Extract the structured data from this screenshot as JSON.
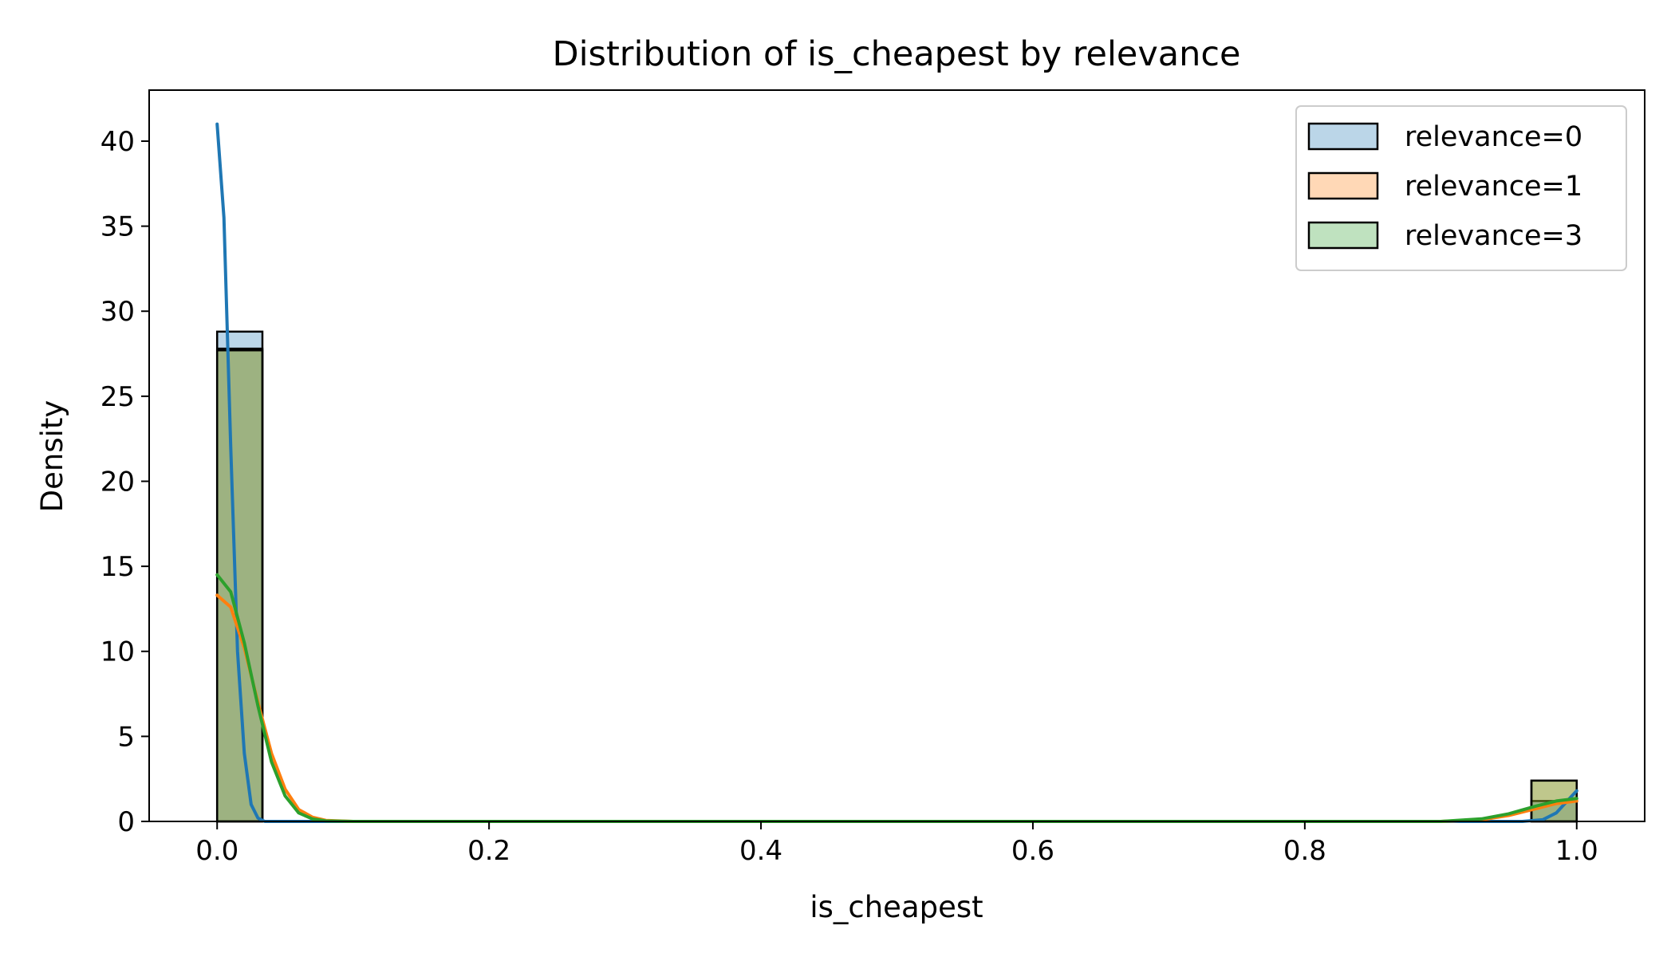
{
  "chart_data": {
    "type": "bar",
    "title": "Distribution of is_cheapest by relevance",
    "xlabel": "is_cheapest",
    "ylabel": "Density",
    "xlim": [
      -0.05,
      1.05
    ],
    "ylim": [
      0,
      43
    ],
    "x_ticks": [
      "0.0",
      "0.2",
      "0.4",
      "0.6",
      "0.8",
      "1.0"
    ],
    "y_ticks": [
      "0",
      "5",
      "10",
      "15",
      "20",
      "25",
      "30",
      "35",
      "40"
    ],
    "legend_position": "top-right",
    "grid": false,
    "bin_width": 0.0333,
    "series": [
      {
        "name": "relevance=0",
        "color": "#1f77b4",
        "bins": [
          {
            "x0": 0.0,
            "x1": 0.0333,
            "density": 28.8
          },
          {
            "x0": 0.9667,
            "x1": 1.0,
            "density": 1.2
          }
        ],
        "kde": [
          [
            0.0,
            41.0
          ],
          [
            0.005,
            35.5
          ],
          [
            0.01,
            22.0
          ],
          [
            0.015,
            10.0
          ],
          [
            0.02,
            4.0
          ],
          [
            0.025,
            1.0
          ],
          [
            0.03,
            0.2
          ],
          [
            0.035,
            0.0
          ],
          [
            0.96,
            0.0
          ],
          [
            0.975,
            0.1
          ],
          [
            0.985,
            0.5
          ],
          [
            0.993,
            1.2
          ],
          [
            1.0,
            1.8
          ]
        ]
      },
      {
        "name": "relevance=1",
        "color": "#ff7f0e",
        "bins": [
          {
            "x0": 0.0,
            "x1": 0.0333,
            "density": 27.8
          },
          {
            "x0": 0.9667,
            "x1": 1.0,
            "density": 2.4
          }
        ],
        "kde": [
          [
            0.0,
            13.3
          ],
          [
            0.01,
            12.6
          ],
          [
            0.02,
            10.2
          ],
          [
            0.03,
            7.0
          ],
          [
            0.04,
            4.0
          ],
          [
            0.05,
            1.9
          ],
          [
            0.06,
            0.7
          ],
          [
            0.07,
            0.25
          ],
          [
            0.08,
            0.06
          ],
          [
            0.1,
            0.0
          ],
          [
            0.9,
            0.0
          ],
          [
            0.93,
            0.1
          ],
          [
            0.95,
            0.35
          ],
          [
            0.97,
            0.75
          ],
          [
            0.985,
            1.05
          ],
          [
            1.0,
            1.2
          ]
        ]
      },
      {
        "name": "relevance=3",
        "color": "#2ca02c",
        "bins": [
          {
            "x0": 0.0,
            "x1": 0.0333,
            "density": 27.7
          },
          {
            "x0": 0.9667,
            "x1": 1.0,
            "density": 2.4
          }
        ],
        "kde": [
          [
            0.0,
            14.5
          ],
          [
            0.01,
            13.5
          ],
          [
            0.02,
            10.5
          ],
          [
            0.03,
            6.8
          ],
          [
            0.04,
            3.5
          ],
          [
            0.05,
            1.5
          ],
          [
            0.06,
            0.5
          ],
          [
            0.07,
            0.15
          ],
          [
            0.08,
            0.03
          ],
          [
            0.1,
            0.0
          ],
          [
            0.9,
            0.0
          ],
          [
            0.93,
            0.15
          ],
          [
            0.95,
            0.45
          ],
          [
            0.97,
            0.9
          ],
          [
            0.985,
            1.2
          ],
          [
            1.0,
            1.35
          ]
        ]
      }
    ]
  }
}
